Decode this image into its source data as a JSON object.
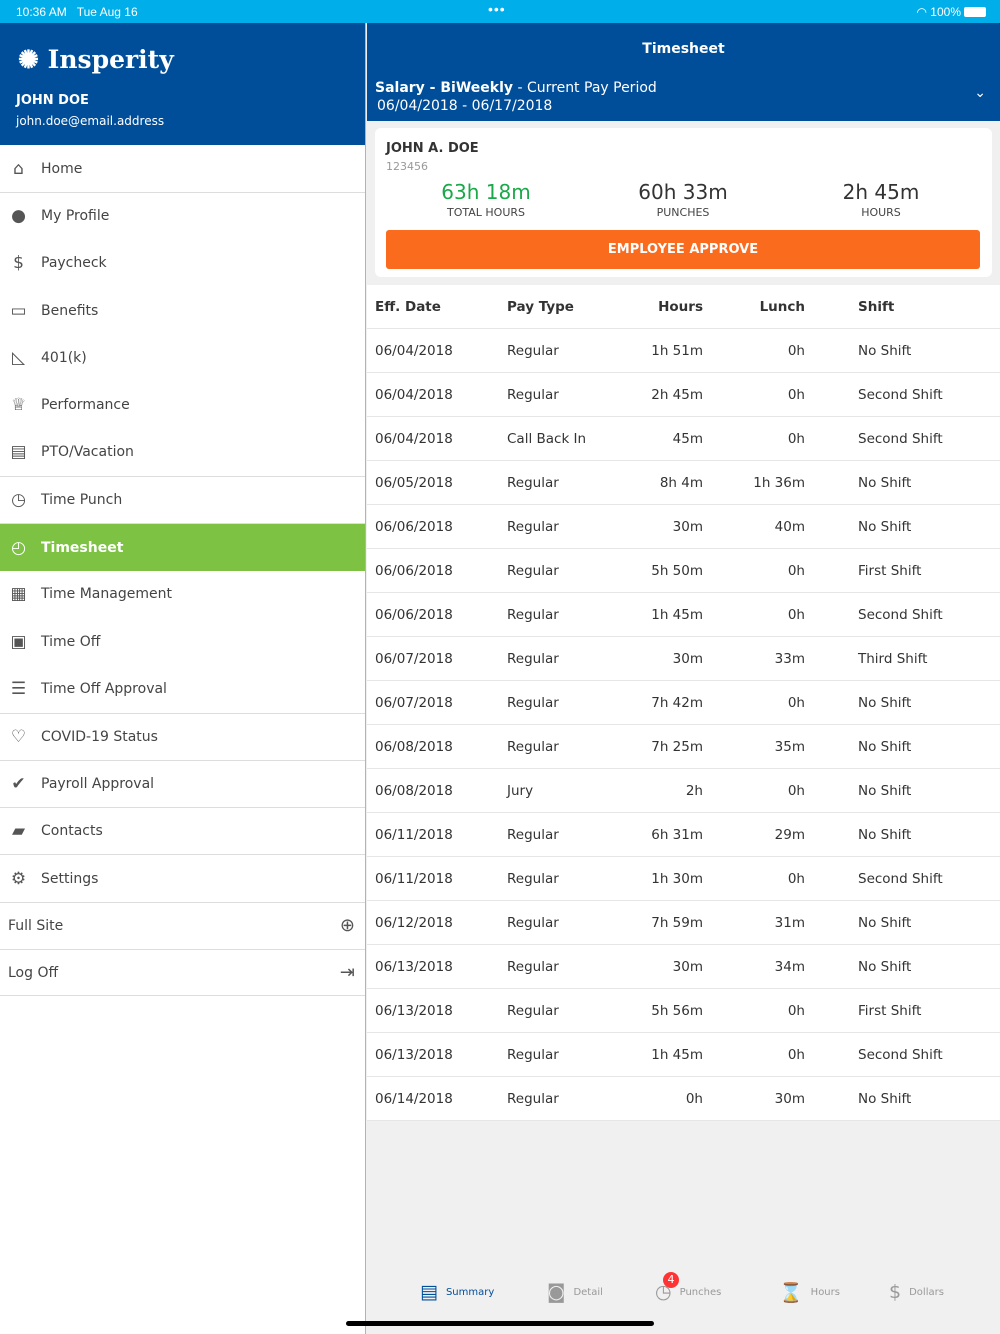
{
  "status": {
    "time": "10:36 AM",
    "date": "Tue Aug 16",
    "dots": "•••",
    "battery": "100%"
  },
  "sidebar": {
    "logo": "Insperity",
    "user_name": "JOHN DOE",
    "user_email": "john.doe@email.address",
    "items": [
      {
        "label": "Home",
        "icon": "home-icon",
        "glyph": "⌂"
      },
      {
        "label": "My Profile",
        "icon": "user-circle-icon",
        "glyph": "●"
      },
      {
        "label": "Paycheck",
        "icon": "dollar-icon",
        "glyph": "$"
      },
      {
        "label": "Benefits",
        "icon": "folder-plus-icon",
        "glyph": "▭"
      },
      {
        "label": "401(k)",
        "icon": "chart-icon",
        "glyph": "◺"
      },
      {
        "label": "Performance",
        "icon": "trophy-icon",
        "glyph": "♕"
      },
      {
        "label": "PTO/Vacation",
        "icon": "calendar-icon",
        "glyph": "▤"
      },
      {
        "label": "Time Punch",
        "icon": "stopwatch-icon",
        "glyph": "◷"
      },
      {
        "label": "Timesheet",
        "icon": "clock-icon",
        "glyph": "◴",
        "active": true
      },
      {
        "label": "Time Management",
        "icon": "table-clock-icon",
        "glyph": "▦"
      },
      {
        "label": "Time Off",
        "icon": "calendar-clock-icon",
        "glyph": "▣"
      },
      {
        "label": "Time Off Approval",
        "icon": "list-icon",
        "glyph": "☰"
      },
      {
        "label": "COVID-19 Status",
        "icon": "heart-icon",
        "glyph": "♡"
      },
      {
        "label": "Payroll Approval",
        "icon": "clipboard-check-icon",
        "glyph": "✔"
      },
      {
        "label": "Contacts",
        "icon": "contact-card-icon",
        "glyph": "▰"
      },
      {
        "label": "Settings",
        "icon": "gear-icon",
        "glyph": "⚙"
      }
    ],
    "full_site": "Full Site",
    "log_off": "Log Off"
  },
  "header": {
    "title": "Timesheet",
    "period_bold": "Salary - BiWeekly",
    "period_rest": " - Current Pay Period",
    "dates": "06/04/2018 - 06/17/2018"
  },
  "card": {
    "name": "JOHN A. DOE",
    "id": "123456",
    "total_hours": "63h 18m",
    "total_hours_label": "TOTAL HOURS",
    "punches": "60h 33m",
    "punches_label": "PUNCHES",
    "hours": "2h 45m",
    "hours_label": "HOURS",
    "approve": "EMPLOYEE APPROVE",
    "accent": "#fb6b1e",
    "total_color": "#1aa84a"
  },
  "table": {
    "headers": [
      "Eff. Date",
      "Pay Type",
      "Hours",
      "Lunch",
      "Shift"
    ],
    "rows": [
      [
        "06/04/2018",
        "Regular",
        "1h 51m",
        "0h",
        "No Shift"
      ],
      [
        "06/04/2018",
        "Regular",
        "2h 45m",
        "0h",
        "Second Shift"
      ],
      [
        "06/04/2018",
        "Call Back In",
        "45m",
        "0h",
        "Second Shift"
      ],
      [
        "06/05/2018",
        "Regular",
        "8h 4m",
        "1h 36m",
        "No Shift"
      ],
      [
        "06/06/2018",
        "Regular",
        "30m",
        "40m",
        "No Shift"
      ],
      [
        "06/06/2018",
        "Regular",
        "5h 50m",
        "0h",
        "First Shift"
      ],
      [
        "06/06/2018",
        "Regular",
        "1h 45m",
        "0h",
        "Second Shift"
      ],
      [
        "06/07/2018",
        "Regular",
        "30m",
        "33m",
        "Third Shift"
      ],
      [
        "06/07/2018",
        "Regular",
        "7h 42m",
        "0h",
        "No Shift"
      ],
      [
        "06/08/2018",
        "Regular",
        "7h 25m",
        "35m",
        "No Shift"
      ],
      [
        "06/08/2018",
        "Jury",
        "2h",
        "0h",
        "No Shift"
      ],
      [
        "06/11/2018",
        "Regular",
        "6h 31m",
        "29m",
        "No Shift"
      ],
      [
        "06/11/2018",
        "Regular",
        "1h 30m",
        "0h",
        "Second Shift"
      ],
      [
        "06/12/2018",
        "Regular",
        "7h 59m",
        "31m",
        "No Shift"
      ],
      [
        "06/13/2018",
        "Regular",
        "30m",
        "34m",
        "No Shift"
      ],
      [
        "06/13/2018",
        "Regular",
        "5h 56m",
        "0h",
        "First Shift"
      ],
      [
        "06/13/2018",
        "Regular",
        "1h 45m",
        "0h",
        "Second Shift"
      ],
      [
        "06/14/2018",
        "Regular",
        "0h",
        "30m",
        "No Shift"
      ]
    ]
  },
  "tabs": [
    {
      "label": "Summary",
      "icon": "document-icon",
      "glyph": "▤",
      "active": true
    },
    {
      "label": "Detail",
      "icon": "document-search-icon",
      "glyph": "◙"
    },
    {
      "label": "Punches",
      "icon": "stopwatch-icon",
      "glyph": "◷",
      "badge": "4"
    },
    {
      "label": "Hours",
      "icon": "hourglass-icon",
      "glyph": "⌛"
    },
    {
      "label": "Dollars",
      "icon": "dollar-icon",
      "glyph": "$"
    }
  ]
}
